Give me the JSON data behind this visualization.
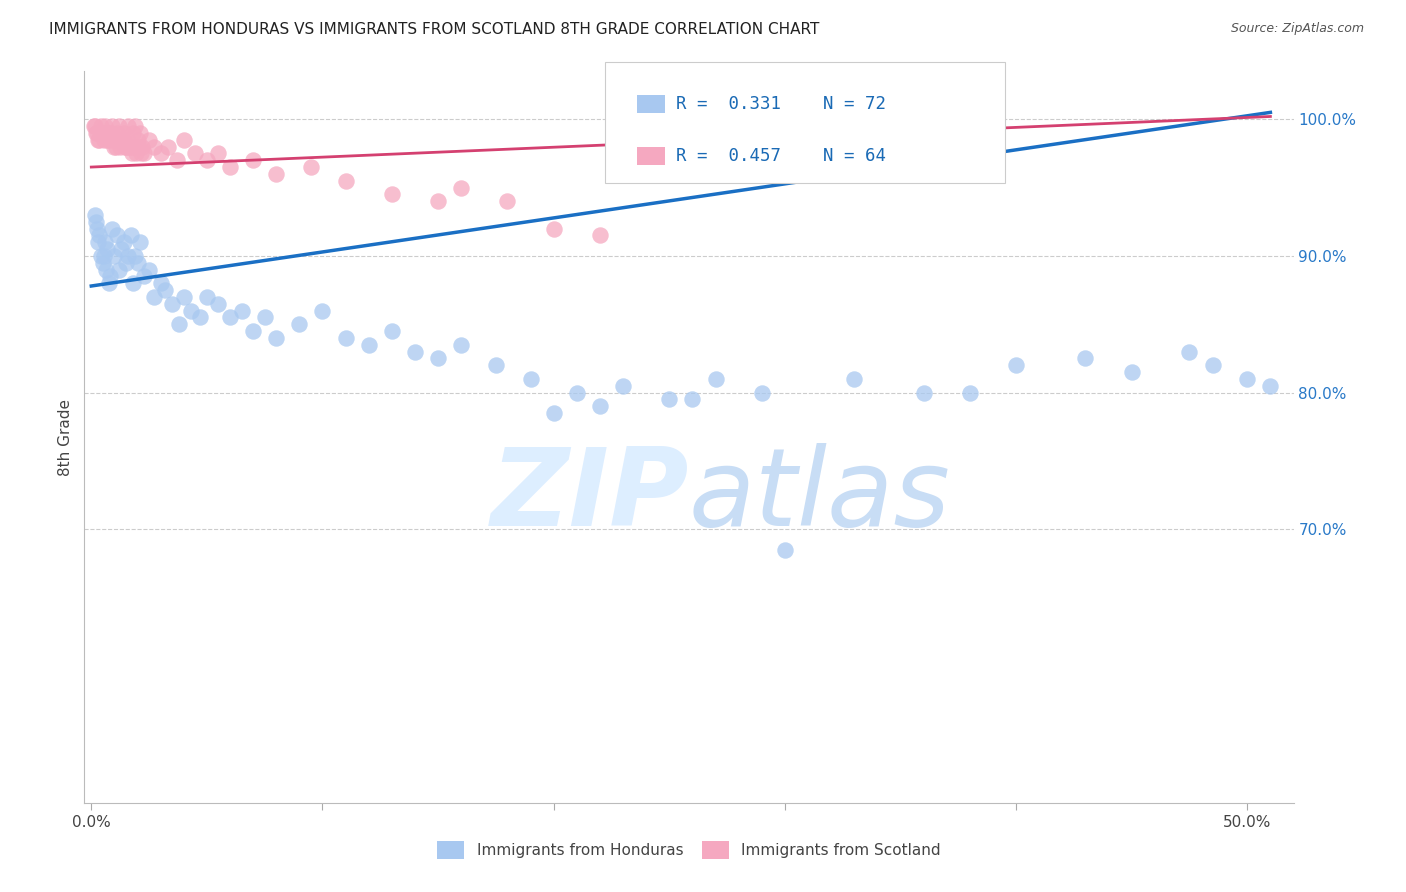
{
  "title": "IMMIGRANTS FROM HONDURAS VS IMMIGRANTS FROM SCOTLAND 8TH GRADE CORRELATION CHART",
  "source": "Source: ZipAtlas.com",
  "ylabel": "8th Grade",
  "xlim": [
    -0.3,
    52.0
  ],
  "ylim": [
    50.0,
    103.5
  ],
  "yticks": [
    70.0,
    80.0,
    90.0,
    100.0
  ],
  "ytick_labels": [
    "70.0%",
    "80.0%",
    "90.0%",
    "100.0%"
  ],
  "xticks": [
    0.0,
    10.0,
    20.0,
    30.0,
    40.0,
    50.0
  ],
  "xtick_labels": [
    "0.0%",
    "",
    "",
    "",
    "",
    "50.0%"
  ],
  "color_honduras": "#a8c8f0",
  "color_scotland": "#f5a8c0",
  "color_line_honduras": "#1a6fc4",
  "color_line_scotland": "#d44070",
  "watermark_color": "#ddeeff",
  "honduras_line_x0": 0.0,
  "honduras_line_y0": 87.8,
  "honduras_line_x1": 51.0,
  "honduras_line_y1": 100.5,
  "scotland_line_x0": 0.0,
  "scotland_line_y0": 96.5,
  "scotland_line_x1": 51.0,
  "scotland_line_y1": 100.2,
  "hon_x": [
    0.2,
    0.3,
    0.4,
    0.5,
    0.6,
    0.7,
    0.8,
    0.9,
    1.0,
    1.1,
    1.2,
    1.3,
    1.4,
    1.5,
    1.6,
    1.7,
    1.8,
    1.9,
    2.0,
    2.1,
    2.3,
    2.5,
    2.7,
    3.0,
    3.2,
    3.5,
    3.8,
    4.0,
    4.3,
    4.7,
    5.0,
    5.5,
    6.0,
    6.5,
    7.0,
    7.5,
    8.0,
    9.0,
    10.0,
    11.0,
    12.0,
    13.0,
    14.0,
    15.0,
    16.0,
    17.5,
    19.0,
    21.0,
    23.0,
    25.0,
    27.0,
    29.0,
    33.0,
    36.0,
    40.0,
    43.0,
    47.5,
    50.0,
    51.0,
    20.0,
    22.0,
    26.0,
    30.0,
    38.0,
    45.0,
    48.5,
    0.15,
    0.25,
    0.35,
    0.55,
    0.65,
    0.75
  ],
  "hon_y": [
    92.5,
    91.0,
    90.0,
    89.5,
    91.0,
    90.5,
    88.5,
    92.0,
    90.0,
    91.5,
    89.0,
    90.5,
    91.0,
    89.5,
    90.0,
    91.5,
    88.0,
    90.0,
    89.5,
    91.0,
    88.5,
    89.0,
    87.0,
    88.0,
    87.5,
    86.5,
    85.0,
    87.0,
    86.0,
    85.5,
    87.0,
    86.5,
    85.5,
    86.0,
    84.5,
    85.5,
    84.0,
    85.0,
    86.0,
    84.0,
    83.5,
    84.5,
    83.0,
    82.5,
    83.5,
    82.0,
    81.0,
    80.0,
    80.5,
    79.5,
    81.0,
    80.0,
    81.0,
    80.0,
    82.0,
    82.5,
    83.0,
    81.0,
    80.5,
    78.5,
    79.0,
    79.5,
    68.5,
    80.0,
    81.5,
    82.0,
    93.0,
    92.0,
    91.5,
    90.0,
    89.0,
    88.0
  ],
  "sco_x": [
    0.1,
    0.2,
    0.3,
    0.4,
    0.5,
    0.6,
    0.7,
    0.8,
    0.9,
    1.0,
    1.1,
    1.2,
    1.3,
    1.4,
    1.5,
    1.6,
    1.7,
    1.8,
    1.9,
    2.0,
    2.1,
    2.2,
    2.3,
    2.5,
    2.7,
    3.0,
    3.3,
    3.7,
    4.0,
    4.5,
    5.0,
    5.5,
    6.0,
    7.0,
    8.0,
    9.5,
    11.0,
    13.0,
    15.0,
    16.0,
    18.0,
    20.0,
    22.0,
    0.15,
    0.25,
    0.35,
    0.45,
    0.55,
    0.65,
    0.75,
    0.85,
    0.95,
    1.05,
    1.15,
    1.25,
    1.35,
    1.45,
    1.55,
    1.65,
    1.75,
    1.85,
    1.95,
    2.05,
    2.15
  ],
  "sco_y": [
    99.5,
    99.0,
    98.5,
    99.5,
    99.0,
    99.5,
    98.5,
    99.0,
    99.5,
    98.0,
    99.0,
    99.5,
    98.5,
    99.0,
    98.0,
    99.5,
    98.0,
    99.0,
    99.5,
    98.5,
    99.0,
    98.0,
    97.5,
    98.5,
    98.0,
    97.5,
    98.0,
    97.0,
    98.5,
    97.5,
    97.0,
    97.5,
    96.5,
    97.0,
    96.0,
    96.5,
    95.5,
    94.5,
    94.0,
    95.0,
    94.0,
    92.0,
    91.5,
    99.5,
    99.0,
    98.5,
    99.0,
    98.5,
    99.0,
    98.5,
    99.0,
    98.5,
    98.0,
    98.5,
    98.0,
    98.5,
    98.0,
    98.5,
    98.0,
    97.5,
    98.0,
    97.5,
    98.0,
    97.5
  ]
}
